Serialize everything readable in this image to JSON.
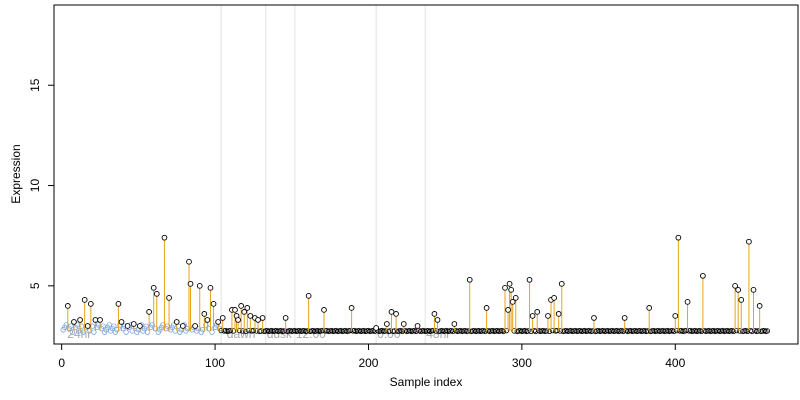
{
  "chart_data": {
    "type": "scatter",
    "title": "",
    "xlabel": "Sample index",
    "ylabel": "Expression",
    "xlim": [
      -5,
      480
    ],
    "ylim": [
      2.1,
      19.0
    ],
    "xticks": [
      0,
      100,
      200,
      300,
      400
    ],
    "yticks": [
      5,
      10,
      15
    ],
    "baseline": 2.75,
    "grid": false,
    "legend": "none",
    "colors": {
      "stem": "#e8a317",
      "point_edge": "#000000",
      "low_point": "#7aa3e0",
      "divider": "#e2e2e2",
      "region_label": "#a8a8a8"
    },
    "dividers": [
      104,
      133,
      152,
      205,
      237
    ],
    "region_labels": [
      {
        "text": "24hr",
        "x": 3
      },
      {
        "text": "dawn",
        "x": 107
      },
      {
        "text": "dusk",
        "x": 133
      },
      {
        "text": "12:00",
        "x": 152
      },
      {
        "text": "0:00",
        "x": 205
      },
      {
        "text": "48hr",
        "x": 237
      }
    ],
    "peaks": [
      [
        4,
        4.0
      ],
      [
        8,
        3.2
      ],
      [
        12,
        3.3
      ],
      [
        15,
        4.3
      ],
      [
        17,
        3.0
      ],
      [
        19,
        4.1
      ],
      [
        22,
        3.3
      ],
      [
        25,
        3.3
      ],
      [
        37,
        4.1
      ],
      [
        39,
        3.2
      ],
      [
        43,
        3.0
      ],
      [
        47,
        3.1
      ],
      [
        51,
        3.0
      ],
      [
        57,
        3.7
      ],
      [
        60,
        4.9
      ],
      [
        62,
        4.6
      ],
      [
        67,
        7.4
      ],
      [
        70,
        4.4
      ],
      [
        75,
        3.2
      ],
      [
        79,
        3.0
      ],
      [
        83,
        6.2
      ],
      [
        84,
        5.1
      ],
      [
        87,
        3.0
      ],
      [
        90,
        5.0
      ],
      [
        93,
        3.6
      ],
      [
        95,
        3.3
      ],
      [
        97,
        4.9
      ],
      [
        99,
        4.1
      ],
      [
        102,
        3.2
      ],
      [
        105,
        3.4
      ],
      [
        111,
        3.8
      ],
      [
        113,
        3.8
      ],
      [
        114,
        3.5
      ],
      [
        115,
        3.3
      ],
      [
        117,
        4.0
      ],
      [
        119,
        3.7
      ],
      [
        121,
        3.9
      ],
      [
        123,
        3.5
      ],
      [
        126,
        3.4
      ],
      [
        128,
        3.3
      ],
      [
        131,
        3.4
      ],
      [
        146,
        3.4
      ],
      [
        161,
        4.5
      ],
      [
        171,
        3.8
      ],
      [
        189,
        3.9
      ],
      [
        205,
        2.9
      ],
      [
        212,
        3.1
      ],
      [
        215,
        3.7
      ],
      [
        218,
        3.6
      ],
      [
        223,
        3.1
      ],
      [
        232,
        3.0
      ],
      [
        243,
        3.6
      ],
      [
        245,
        3.3
      ],
      [
        256,
        3.1
      ],
      [
        266,
        5.3
      ],
      [
        277,
        3.9
      ],
      [
        289,
        4.9
      ],
      [
        291,
        3.8
      ],
      [
        292,
        5.1
      ],
      [
        293,
        4.8
      ],
      [
        294,
        4.2
      ],
      [
        296,
        4.4
      ],
      [
        305,
        5.3
      ],
      [
        307,
        3.5
      ],
      [
        310,
        3.7
      ],
      [
        317,
        3.5
      ],
      [
        319,
        4.3
      ],
      [
        321,
        4.4
      ],
      [
        324,
        3.6
      ],
      [
        326,
        5.1
      ],
      [
        347,
        3.4
      ],
      [
        367,
        3.4
      ],
      [
        383,
        3.9
      ],
      [
        400,
        3.5
      ],
      [
        402,
        7.4
      ],
      [
        408,
        4.2
      ],
      [
        418,
        5.5
      ],
      [
        439,
        5.0
      ],
      [
        441,
        4.8
      ],
      [
        443,
        4.3
      ],
      [
        448,
        7.2
      ],
      [
        451,
        4.8
      ],
      [
        455,
        4.0
      ]
    ]
  }
}
